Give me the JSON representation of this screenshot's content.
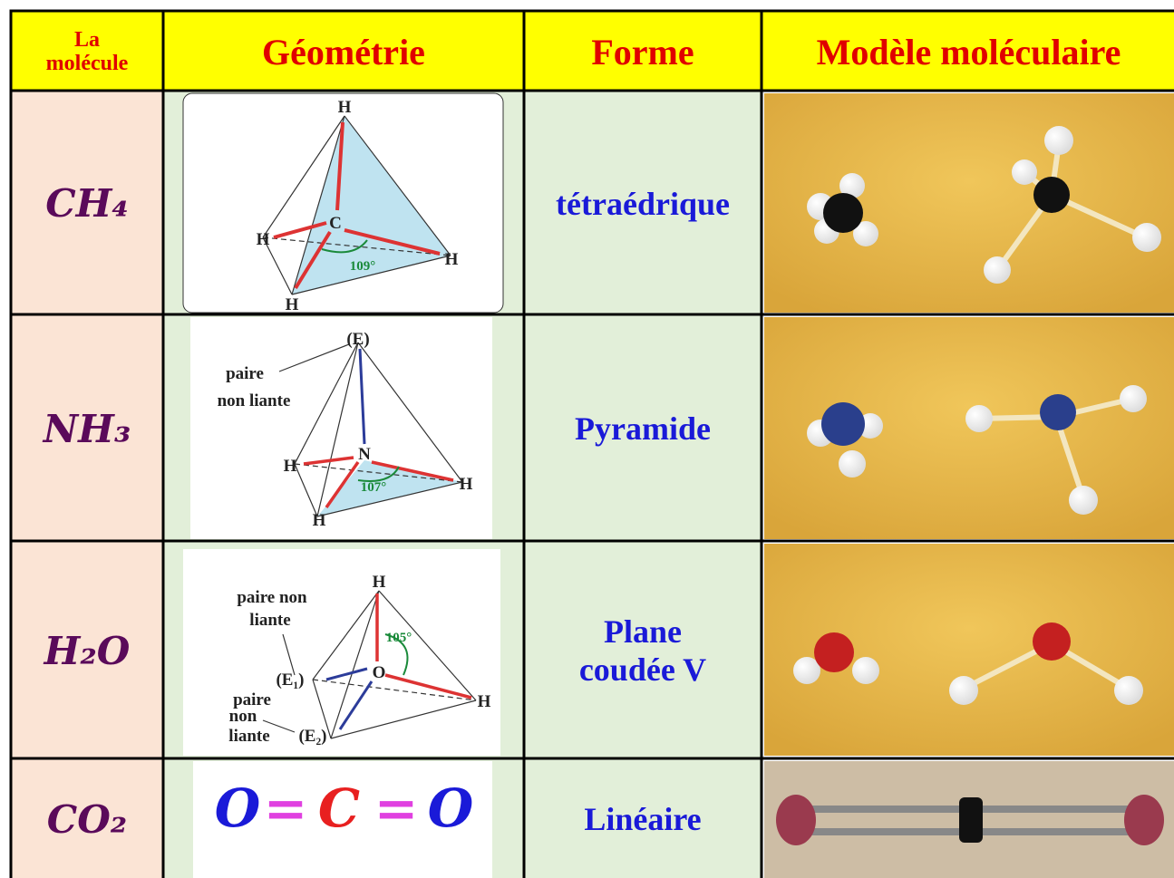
{
  "header": {
    "columns": [
      "La molécule",
      "Géométrie",
      "Forme",
      "Modèle moléculaire"
    ]
  },
  "rows": [
    {
      "molecule": "CH₄",
      "geometry_labels": [
        "H",
        "C",
        "H",
        "H",
        "H",
        "109°"
      ],
      "shape": "tétraédrique"
    },
    {
      "molecule": "NH₃",
      "geometry_labels": [
        "(E)",
        "paire",
        "non liante",
        "N",
        "H",
        "H",
        "H",
        "107°"
      ],
      "shape": "Pyramide"
    },
    {
      "molecule": "H₂O",
      "geometry_labels": [
        "H",
        "paire non",
        "liante",
        "(E₁)",
        "O",
        "105°",
        "H",
        "paire",
        "non",
        "liante",
        "(E₂)"
      ],
      "shape": "Plane coudée V"
    },
    {
      "molecule": "CO₂",
      "geometry_formula": [
        "O",
        "=",
        "C",
        "=",
        "O"
      ],
      "shape": "Linéaire"
    }
  ]
}
